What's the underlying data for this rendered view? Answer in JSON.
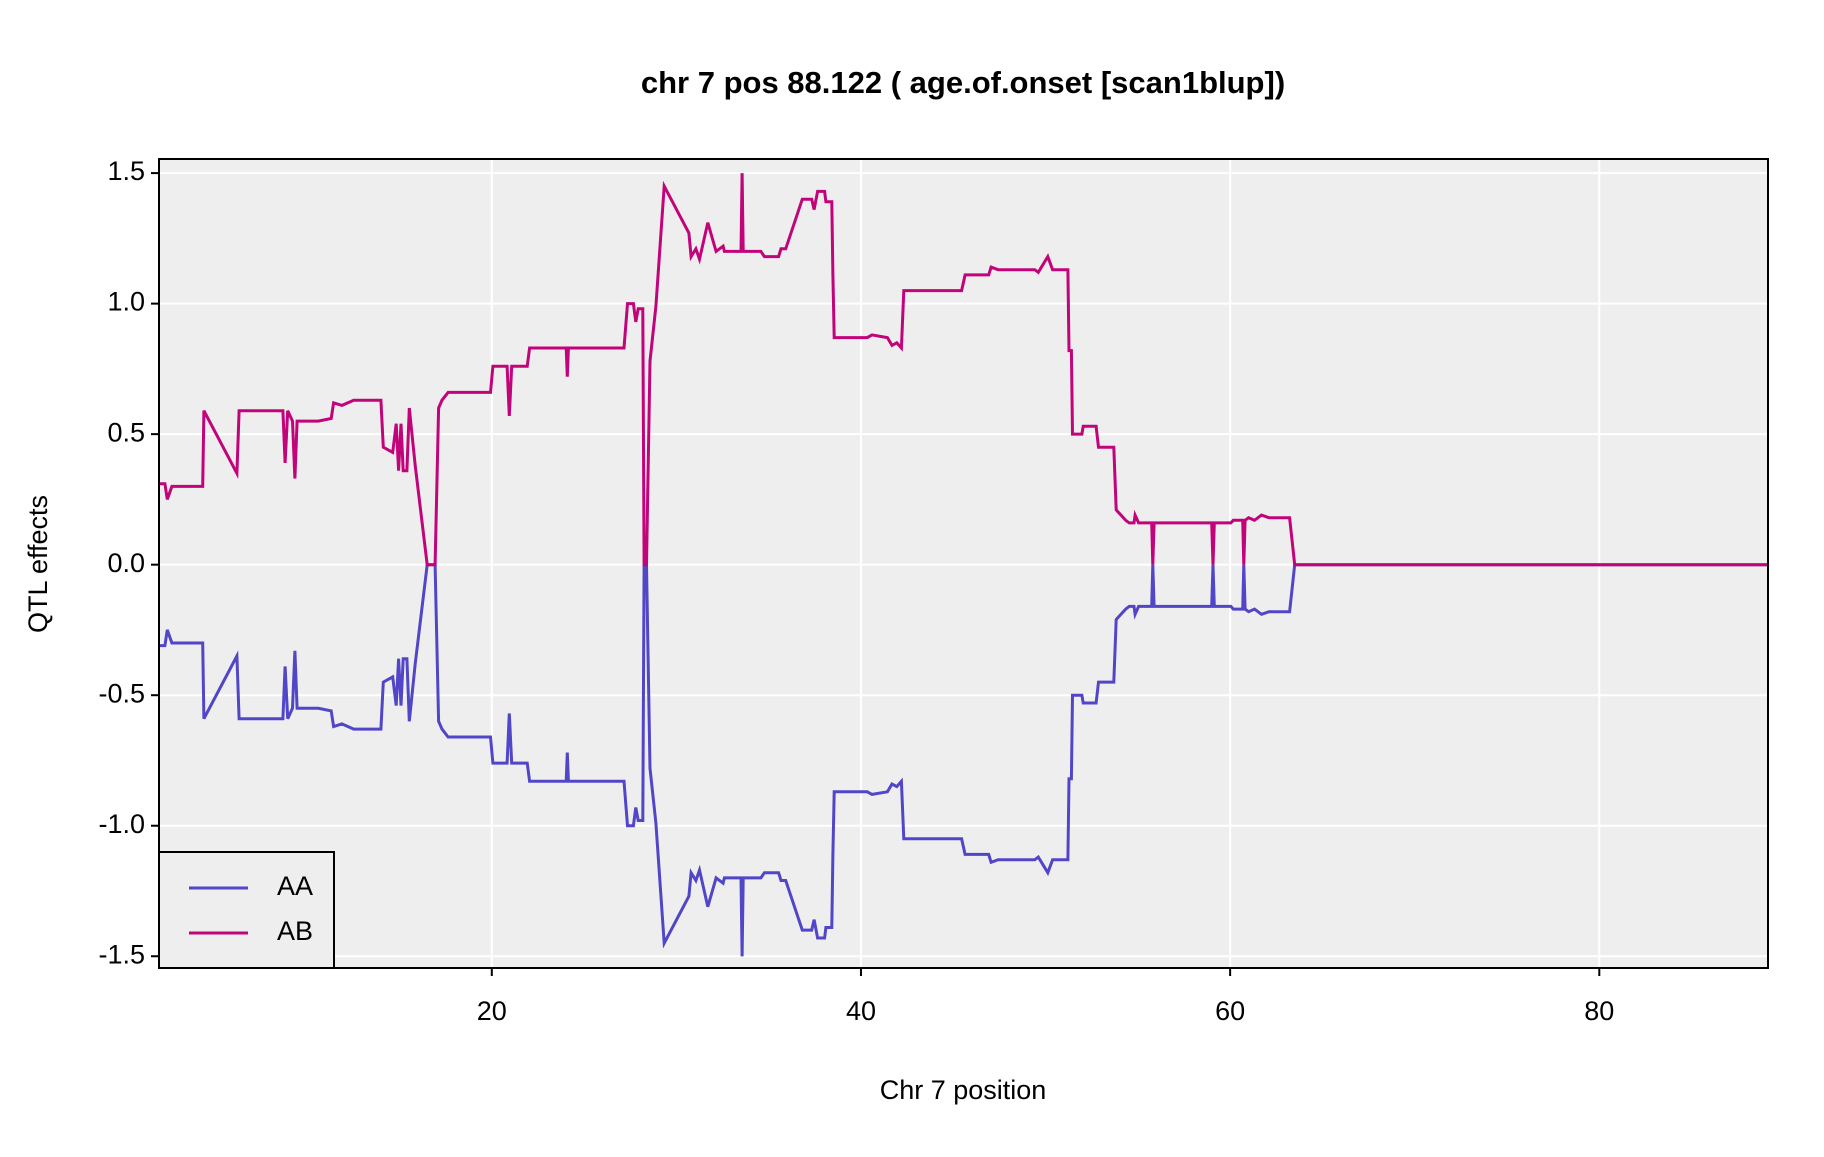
{
  "chart_data": {
    "type": "line",
    "title": "chr 7 pos 88.122 ( age.of.onset  [scan1blup])",
    "xlabel": "Chr 7 position",
    "ylabel": "QTL effects",
    "x": [
      1.97,
      2.29,
      2.42,
      2.67,
      4.34,
      4.4,
      6.19,
      6.31,
      8.68,
      8.8,
      8.94,
      9.2,
      9.33,
      9.45,
      10.6,
      11.3,
      11.43,
      11.88,
      12.52,
      13.99,
      14.12,
      14.63,
      14.82,
      14.95,
      15.08,
      15.2,
      15.4,
      15.53,
      15.85,
      16.5,
      16.93,
      17.12,
      17.3,
      17.63,
      19.93,
      20.06,
      20.83,
      20.95,
      21.08,
      21.92,
      22.05,
      24.03,
      24.09,
      24.15,
      27.16,
      27.35,
      27.67,
      27.8,
      27.93,
      28.18,
      28.25,
      28.38,
      28.57,
      28.89,
      29.34,
      30.68,
      30.8,
      31.06,
      31.25,
      31.7,
      32.15,
      32.53,
      32.6,
      33.5,
      33.56,
      33.62,
      34.58,
      34.77,
      35.54,
      35.67,
      35.92,
      36.82,
      37.33,
      37.46,
      37.65,
      38.03,
      38.1,
      38.42,
      38.48,
      38.55,
      40.34,
      40.6,
      41.43,
      41.68,
      41.94,
      42.19,
      42.32,
      45.45,
      45.64,
      46.92,
      47.05,
      47.43,
      49.42,
      49.61,
      50.12,
      50.38,
      51.21,
      51.27,
      51.4,
      51.46,
      51.97,
      52.04,
      52.74,
      52.87,
      53.7,
      53.83,
      54.34,
      54.53,
      54.79,
      54.85,
      55.04,
      55.75,
      55.81,
      55.88,
      59.0,
      59.07,
      59.14,
      60.04,
      60.17,
      60.68,
      60.74,
      60.81,
      61.0,
      61.32,
      61.7,
      62.1,
      63.22,
      63.5,
      89.14
    ],
    "series": [
      {
        "name": "AA",
        "color": "#5246c8",
        "values": [
          -0.31,
          -0.31,
          -0.25,
          -0.3,
          -0.3,
          -0.59,
          -0.35,
          -0.59,
          -0.59,
          -0.39,
          -0.59,
          -0.55,
          -0.33,
          -0.55,
          -0.55,
          -0.56,
          -0.62,
          -0.61,
          -0.63,
          -0.63,
          -0.45,
          -0.43,
          -0.54,
          -0.36,
          -0.54,
          -0.36,
          -0.36,
          -0.6,
          -0.38,
          0,
          0,
          -0.6,
          -0.63,
          -0.66,
          -0.66,
          -0.76,
          -0.76,
          -0.57,
          -0.76,
          -0.76,
          -0.83,
          -0.83,
          -0.72,
          -0.83,
          -0.83,
          -1.0,
          -1.0,
          -0.93,
          -0.98,
          -0.98,
          0,
          0,
          -0.78,
          -0.99,
          -1.45,
          -1.27,
          -1.18,
          -1.21,
          -1.17,
          -1.31,
          -1.2,
          -1.22,
          -1.2,
          -1.2,
          -1.5,
          -1.2,
          -1.2,
          -1.18,
          -1.18,
          -1.21,
          -1.21,
          -1.4,
          -1.4,
          -1.36,
          -1.43,
          -1.43,
          -1.39,
          -1.39,
          -1.11,
          -0.87,
          -0.87,
          -0.88,
          -0.87,
          -0.84,
          -0.85,
          -0.83,
          -1.05,
          -1.05,
          -1.11,
          -1.11,
          -1.14,
          -1.13,
          -1.13,
          -1.12,
          -1.18,
          -1.13,
          -1.13,
          -0.82,
          -0.82,
          -0.5,
          -0.5,
          -0.53,
          -0.53,
          -0.45,
          -0.45,
          -0.21,
          -0.17,
          -0.16,
          -0.16,
          -0.19,
          -0.16,
          -0.16,
          0,
          -0.16,
          -0.16,
          0,
          -0.16,
          -0.16,
          -0.17,
          -0.17,
          0,
          -0.17,
          -0.18,
          -0.17,
          -0.19,
          -0.18,
          -0.18,
          0,
          0
        ]
      },
      {
        "name": "AB",
        "color": "#c2047a",
        "values": [
          0.31,
          0.31,
          0.25,
          0.3,
          0.3,
          0.59,
          0.35,
          0.59,
          0.59,
          0.39,
          0.59,
          0.55,
          0.33,
          0.55,
          0.55,
          0.56,
          0.62,
          0.61,
          0.63,
          0.63,
          0.45,
          0.43,
          0.54,
          0.36,
          0.54,
          0.36,
          0.36,
          0.6,
          0.38,
          0,
          0,
          0.6,
          0.63,
          0.66,
          0.66,
          0.76,
          0.76,
          0.57,
          0.76,
          0.76,
          0.83,
          0.83,
          0.72,
          0.83,
          0.83,
          1.0,
          1.0,
          0.93,
          0.98,
          0.98,
          0,
          0,
          0.78,
          0.99,
          1.45,
          1.27,
          1.18,
          1.21,
          1.17,
          1.31,
          1.2,
          1.22,
          1.2,
          1.2,
          1.5,
          1.2,
          1.2,
          1.18,
          1.18,
          1.21,
          1.21,
          1.4,
          1.4,
          1.36,
          1.43,
          1.43,
          1.39,
          1.39,
          1.11,
          0.87,
          0.87,
          0.88,
          0.87,
          0.84,
          0.85,
          0.83,
          1.05,
          1.05,
          1.11,
          1.11,
          1.14,
          1.13,
          1.13,
          1.12,
          1.18,
          1.13,
          1.13,
          0.82,
          0.82,
          0.5,
          0.5,
          0.53,
          0.53,
          0.45,
          0.45,
          0.21,
          0.17,
          0.16,
          0.16,
          0.19,
          0.16,
          0.16,
          0,
          0.16,
          0.16,
          0,
          0.16,
          0.16,
          0.17,
          0.17,
          0,
          0.17,
          0.18,
          0.17,
          0.19,
          0.18,
          0.18,
          0,
          0
        ]
      }
    ],
    "xlim": [
      1.97,
      89.14
    ],
    "ylim": [
      -1.545,
      1.554
    ],
    "xticks": [
      20,
      40,
      60,
      80
    ],
    "yticks": [
      -1.5,
      {
        "value": -1.0,
        "label": "-1.0"
      },
      -0.5,
      {
        "value": 0.0,
        "label": "0.0"
      },
      0.5,
      {
        "value": 1.0,
        "label": "1.0"
      },
      1.5
    ],
    "grid": true,
    "legend": "bottom-left"
  }
}
